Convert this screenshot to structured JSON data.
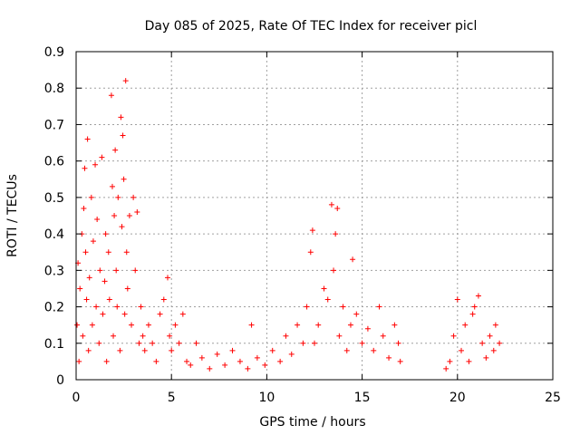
{
  "chart_data": {
    "type": "scatter",
    "title": "Day 085 of 2025, Rate Of TEC Index for receiver picl",
    "xlabel": "GPS time / hours",
    "ylabel": "ROTI / TECUs",
    "xlim": [
      0,
      25
    ],
    "ylim": [
      0,
      0.9
    ],
    "x_ticks": [
      "0",
      "5",
      "10",
      "15",
      "20",
      "25"
    ],
    "y_ticks": [
      "0",
      "0.1",
      "0.2",
      "0.3",
      "0.4",
      "0.5",
      "0.6",
      "0.7",
      "0.8",
      "0.9"
    ],
    "grid": true,
    "marker": "+",
    "colors": {
      "series": "#ff0000",
      "grid": "#a0a0a0",
      "axes": "#000000"
    },
    "series": [
      {
        "points": [
          [
            0.05,
            0.15
          ],
          [
            0.1,
            0.32
          ],
          [
            0.15,
            0.05
          ],
          [
            0.2,
            0.25
          ],
          [
            0.3,
            0.4
          ],
          [
            0.35,
            0.12
          ],
          [
            0.4,
            0.47
          ],
          [
            0.45,
            0.58
          ],
          [
            0.5,
            0.35
          ],
          [
            0.55,
            0.22
          ],
          [
            0.6,
            0.66
          ],
          [
            0.65,
            0.08
          ],
          [
            0.7,
            0.28
          ],
          [
            0.8,
            0.5
          ],
          [
            0.85,
            0.15
          ],
          [
            0.9,
            0.38
          ],
          [
            1.0,
            0.59
          ],
          [
            1.05,
            0.2
          ],
          [
            1.1,
            0.44
          ],
          [
            1.2,
            0.1
          ],
          [
            1.25,
            0.3
          ],
          [
            1.35,
            0.61
          ],
          [
            1.4,
            0.18
          ],
          [
            1.5,
            0.27
          ],
          [
            1.55,
            0.4
          ],
          [
            1.6,
            0.05
          ],
          [
            1.7,
            0.35
          ],
          [
            1.75,
            0.22
          ],
          [
            1.85,
            0.78
          ],
          [
            1.9,
            0.53
          ],
          [
            1.95,
            0.12
          ],
          [
            2.0,
            0.45
          ],
          [
            2.05,
            0.63
          ],
          [
            2.1,
            0.3
          ],
          [
            2.15,
            0.2
          ],
          [
            2.2,
            0.5
          ],
          [
            2.3,
            0.08
          ],
          [
            2.35,
            0.72
          ],
          [
            2.4,
            0.42
          ],
          [
            2.45,
            0.67
          ],
          [
            2.5,
            0.55
          ],
          [
            2.55,
            0.18
          ],
          [
            2.6,
            0.82
          ],
          [
            2.65,
            0.35
          ],
          [
            2.7,
            0.25
          ],
          [
            2.8,
            0.45
          ],
          [
            2.9,
            0.15
          ],
          [
            3.0,
            0.5
          ],
          [
            3.1,
            0.3
          ],
          [
            3.2,
            0.46
          ],
          [
            3.3,
            0.1
          ],
          [
            3.4,
            0.2
          ],
          [
            3.5,
            0.12
          ],
          [
            3.6,
            0.08
          ],
          [
            3.8,
            0.15
          ],
          [
            4.0,
            0.1
          ],
          [
            4.2,
            0.05
          ],
          [
            4.4,
            0.18
          ],
          [
            4.6,
            0.22
          ],
          [
            4.8,
            0.28
          ],
          [
            4.9,
            0.12
          ],
          [
            5.0,
            0.08
          ],
          [
            5.2,
            0.15
          ],
          [
            5.4,
            0.1
          ],
          [
            5.6,
            0.18
          ],
          [
            5.8,
            0.05
          ],
          [
            6.0,
            0.04
          ],
          [
            6.3,
            0.1
          ],
          [
            6.6,
            0.06
          ],
          [
            7.0,
            0.03
          ],
          [
            7.4,
            0.07
          ],
          [
            7.8,
            0.04
          ],
          [
            8.2,
            0.08
          ],
          [
            8.6,
            0.05
          ],
          [
            9.0,
            0.03
          ],
          [
            9.2,
            0.15
          ],
          [
            9.5,
            0.06
          ],
          [
            9.9,
            0.04
          ],
          [
            10.3,
            0.08
          ],
          [
            10.7,
            0.05
          ],
          [
            11.0,
            0.12
          ],
          [
            11.3,
            0.07
          ],
          [
            11.6,
            0.15
          ],
          [
            11.9,
            0.1
          ],
          [
            12.1,
            0.2
          ],
          [
            12.3,
            0.35
          ],
          [
            12.4,
            0.41
          ],
          [
            12.5,
            0.1
          ],
          [
            12.7,
            0.15
          ],
          [
            13.0,
            0.25
          ],
          [
            13.2,
            0.22
          ],
          [
            13.4,
            0.48
          ],
          [
            13.5,
            0.3
          ],
          [
            13.6,
            0.4
          ],
          [
            13.7,
            0.47
          ],
          [
            13.8,
            0.12
          ],
          [
            14.0,
            0.2
          ],
          [
            14.2,
            0.08
          ],
          [
            14.4,
            0.15
          ],
          [
            14.5,
            0.33
          ],
          [
            14.7,
            0.18
          ],
          [
            15.0,
            0.1
          ],
          [
            15.3,
            0.14
          ],
          [
            15.6,
            0.08
          ],
          [
            15.9,
            0.2
          ],
          [
            16.1,
            0.12
          ],
          [
            16.4,
            0.06
          ],
          [
            16.7,
            0.15
          ],
          [
            16.9,
            0.1
          ],
          [
            17.0,
            0.05
          ],
          [
            19.4,
            0.03
          ],
          [
            19.6,
            0.05
          ],
          [
            19.8,
            0.12
          ],
          [
            20.0,
            0.22
          ],
          [
            20.2,
            0.08
          ],
          [
            20.4,
            0.15
          ],
          [
            20.6,
            0.05
          ],
          [
            20.8,
            0.18
          ],
          [
            20.9,
            0.2
          ],
          [
            21.1,
            0.23
          ],
          [
            21.3,
            0.1
          ],
          [
            21.5,
            0.06
          ],
          [
            21.7,
            0.12
          ],
          [
            21.9,
            0.08
          ],
          [
            22.0,
            0.15
          ],
          [
            22.2,
            0.1
          ]
        ]
      }
    ]
  }
}
